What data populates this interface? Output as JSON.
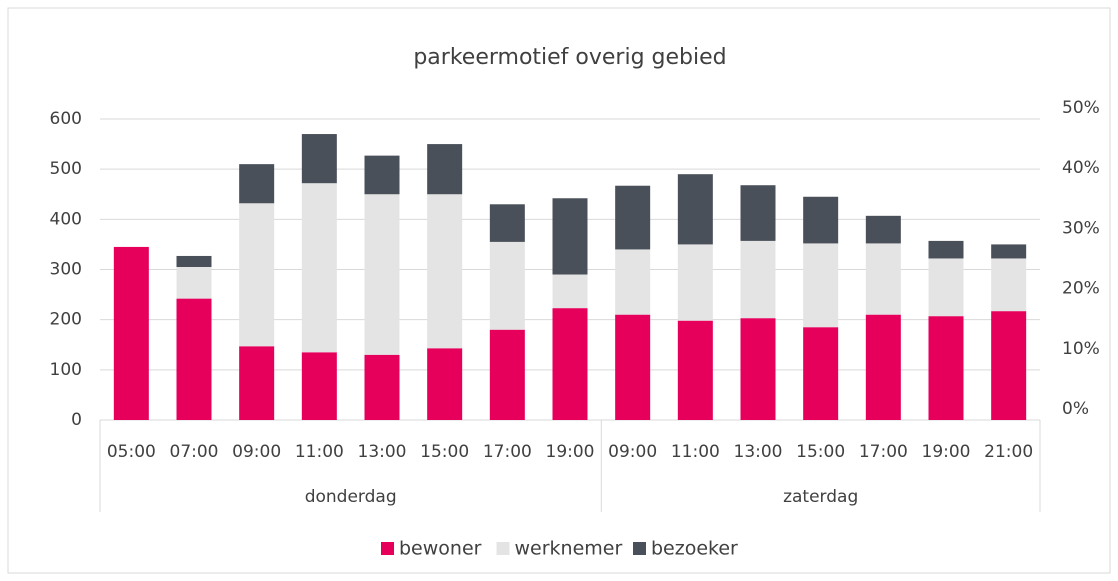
{
  "chart_data": {
    "type": "bar",
    "stacked": true,
    "title": "parkeermotief overig gebied",
    "categories": [
      "05:00",
      "07:00",
      "09:00",
      "11:00",
      "13:00",
      "15:00",
      "17:00",
      "19:00",
      "09:00",
      "11:00",
      "13:00",
      "15:00",
      "17:00",
      "19:00",
      "21:00"
    ],
    "groups": [
      {
        "name": "donderdag",
        "size": 8
      },
      {
        "name": "zaterdag",
        "size": 7
      }
    ],
    "series": [
      {
        "name": "bewoner",
        "color": "#e6005c",
        "values": [
          345,
          242,
          147,
          135,
          130,
          143,
          180,
          223,
          210,
          198,
          203,
          185,
          210,
          207,
          217
        ]
      },
      {
        "name": "werknemer",
        "color": "#e4e4e4",
        "values": [
          0,
          63,
          285,
          337,
          320,
          307,
          175,
          67,
          130,
          152,
          154,
          167,
          142,
          115,
          105
        ]
      },
      {
        "name": "bezoeker",
        "color": "#4a5059",
        "values": [
          0,
          22,
          78,
          98,
          77,
          100,
          75,
          152,
          127,
          140,
          111,
          93,
          55,
          35,
          28
        ]
      }
    ],
    "ylim": [
      0,
      600
    ],
    "yticks": [
      0,
      100,
      200,
      300,
      400,
      500,
      600
    ],
    "y2lim": [
      0,
      50
    ],
    "y2ticks": [
      {
        "value": 0,
        "label": "0%"
      },
      {
        "value": 10,
        "label": "10%"
      },
      {
        "value": 20,
        "label": "20%"
      },
      {
        "value": 30,
        "label": "30%"
      },
      {
        "value": 40,
        "label": "40%"
      },
      {
        "value": 50,
        "label": "50%"
      }
    ],
    "grid": true,
    "legend": "bottom"
  }
}
